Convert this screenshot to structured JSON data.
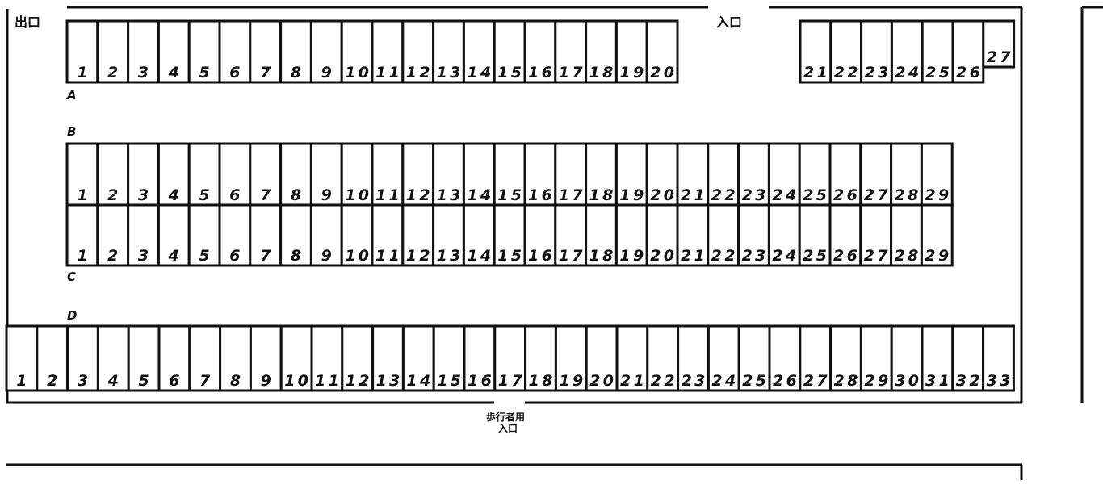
{
  "labels": {
    "exit": "出口",
    "entrance": "入口",
    "pedestrian_line1": "歩行者用",
    "pedestrian_line2": "入口"
  },
  "rows": [
    {
      "name": "A",
      "segments": [
        {
          "numbers": [
            "1",
            "2",
            "3",
            "4",
            "5",
            "6",
            "7",
            "8",
            "9",
            "10",
            "11",
            "12",
            "13",
            "14",
            "15",
            "16",
            "17",
            "18",
            "19",
            "20"
          ]
        },
        {
          "numbers": [
            "21",
            "22",
            "23",
            "24",
            "25",
            "26"
          ]
        }
      ],
      "extra_stall": "27"
    },
    {
      "name": "B",
      "numbers": [
        "1",
        "2",
        "3",
        "4",
        "5",
        "6",
        "7",
        "8",
        "9",
        "10",
        "11",
        "12",
        "13",
        "14",
        "15",
        "16",
        "17",
        "18",
        "19",
        "20",
        "21",
        "22",
        "23",
        "24",
        "25",
        "26",
        "27",
        "28",
        "29"
      ]
    },
    {
      "name": "C",
      "numbers": [
        "1",
        "2",
        "3",
        "4",
        "5",
        "6",
        "7",
        "8",
        "9",
        "10",
        "11",
        "12",
        "13",
        "14",
        "15",
        "16",
        "17",
        "18",
        "19",
        "20",
        "21",
        "22",
        "23",
        "24",
        "25",
        "26",
        "27",
        "28",
        "29"
      ]
    },
    {
      "name": "D",
      "numbers": [
        "1",
        "2",
        "3",
        "4",
        "5",
        "6",
        "7",
        "8",
        "9",
        "10",
        "11",
        "12",
        "13",
        "14",
        "15",
        "16",
        "17",
        "18",
        "19",
        "20",
        "21",
        "22",
        "23",
        "24",
        "25",
        "26",
        "27",
        "28",
        "29",
        "30",
        "31",
        "32",
        "33"
      ]
    }
  ],
  "colors": {
    "line": "#111111",
    "background": "#ffffff"
  }
}
